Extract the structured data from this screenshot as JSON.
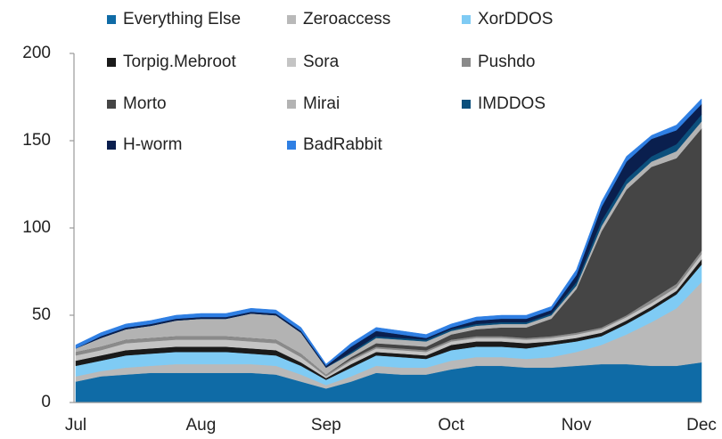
{
  "chart_data": {
    "type": "stacked_area",
    "categories": [
      "Jul",
      null,
      null,
      null,
      null,
      "Aug",
      null,
      null,
      null,
      null,
      "Sep",
      null,
      null,
      null,
      null,
      "Oct",
      null,
      null,
      null,
      null,
      "Nov",
      null,
      null,
      null,
      null,
      "Dec"
    ],
    "ylim": [
      0,
      200
    ],
    "yticks": [
      0,
      50,
      100,
      150,
      200
    ],
    "legend": "top",
    "series": [
      {
        "name": "Everything Else",
        "color": "#0f6ba6",
        "values": [
          12,
          15,
          16,
          17,
          17,
          17,
          17,
          17,
          16,
          12,
          8,
          12,
          17,
          16,
          16,
          19,
          21,
          21,
          20,
          20,
          21,
          22,
          22,
          21,
          21,
          23
        ]
      },
      {
        "name": "Zeroaccess",
        "color": "#b9b9b9",
        "values": [
          3,
          3,
          4,
          4,
          5,
          5,
          5,
          5,
          5,
          4,
          2,
          3,
          4,
          4,
          4,
          5,
          5,
          5,
          5,
          6,
          8,
          11,
          17,
          25,
          33,
          46
        ]
      },
      {
        "name": "XorDDOS",
        "color": "#7fcbf4",
        "values": [
          6,
          6,
          7,
          7,
          7,
          7,
          7,
          6,
          6,
          5,
          3,
          5,
          6,
          6,
          5,
          6,
          6,
          6,
          6,
          7,
          6,
          5,
          6,
          7,
          8,
          10
        ]
      },
      {
        "name": "Torpig.Mebroot",
        "color": "#1a1a1a",
        "values": [
          3,
          3,
          3,
          3,
          3,
          3,
          3,
          3,
          3,
          2,
          1,
          2,
          2,
          2,
          2,
          3,
          3,
          3,
          3,
          2,
          2,
          2,
          2,
          2,
          2,
          3
        ]
      },
      {
        "name": "Sora",
        "color": "#c4c4c4",
        "values": [
          3,
          3,
          4,
          4,
          4,
          4,
          4,
          4,
          4,
          3,
          1,
          2,
          2,
          2,
          2,
          2,
          2,
          2,
          2,
          2,
          2,
          2,
          2,
          2,
          2,
          3
        ]
      },
      {
        "name": "Pushdo",
        "color": "#8a8a8a",
        "values": [
          2,
          2,
          2,
          2,
          2,
          2,
          2,
          2,
          2,
          2,
          1,
          1,
          1,
          1,
          1,
          1,
          1,
          1,
          1,
          1,
          1,
          1,
          1,
          2,
          2,
          2
        ]
      },
      {
        "name": "Morto",
        "color": "#454545",
        "values": [
          0,
          0,
          0,
          0,
          0,
          0,
          0,
          0,
          0,
          0,
          0,
          1,
          2,
          2,
          2,
          3,
          4,
          5,
          6,
          10,
          25,
          55,
          72,
          76,
          72,
          70
        ]
      },
      {
        "name": "Mirai",
        "color": "#b3b3b3",
        "values": [
          2,
          5,
          6,
          7,
          9,
          10,
          10,
          14,
          14,
          12,
          4,
          2,
          3,
          3,
          3,
          2,
          2,
          2,
          2,
          2,
          2,
          3,
          3,
          3,
          4,
          4
        ]
      },
      {
        "name": "IMDDOS",
        "color": "#0b4f7c",
        "values": [
          0,
          0,
          0,
          0,
          0,
          0,
          0,
          0,
          0,
          0,
          0,
          1,
          1,
          1,
          1,
          1,
          1,
          1,
          1,
          1,
          2,
          3,
          3,
          3,
          4,
          4
        ]
      },
      {
        "name": "H-worm",
        "color": "#0a1f4e",
        "values": [
          0,
          1,
          1,
          1,
          1,
          1,
          1,
          1,
          1,
          1,
          1,
          3,
          3,
          2,
          1,
          1,
          2,
          2,
          2,
          2,
          4,
          8,
          10,
          10,
          8,
          6
        ]
      },
      {
        "name": "BadRabbit",
        "color": "#2f7fe3",
        "values": [
          2,
          2,
          2,
          2,
          2,
          2,
          2,
          2,
          2,
          2,
          1,
          2,
          2,
          2,
          2,
          2,
          2,
          2,
          2,
          2,
          3,
          3,
          3,
          2,
          3,
          3
        ]
      }
    ]
  }
}
